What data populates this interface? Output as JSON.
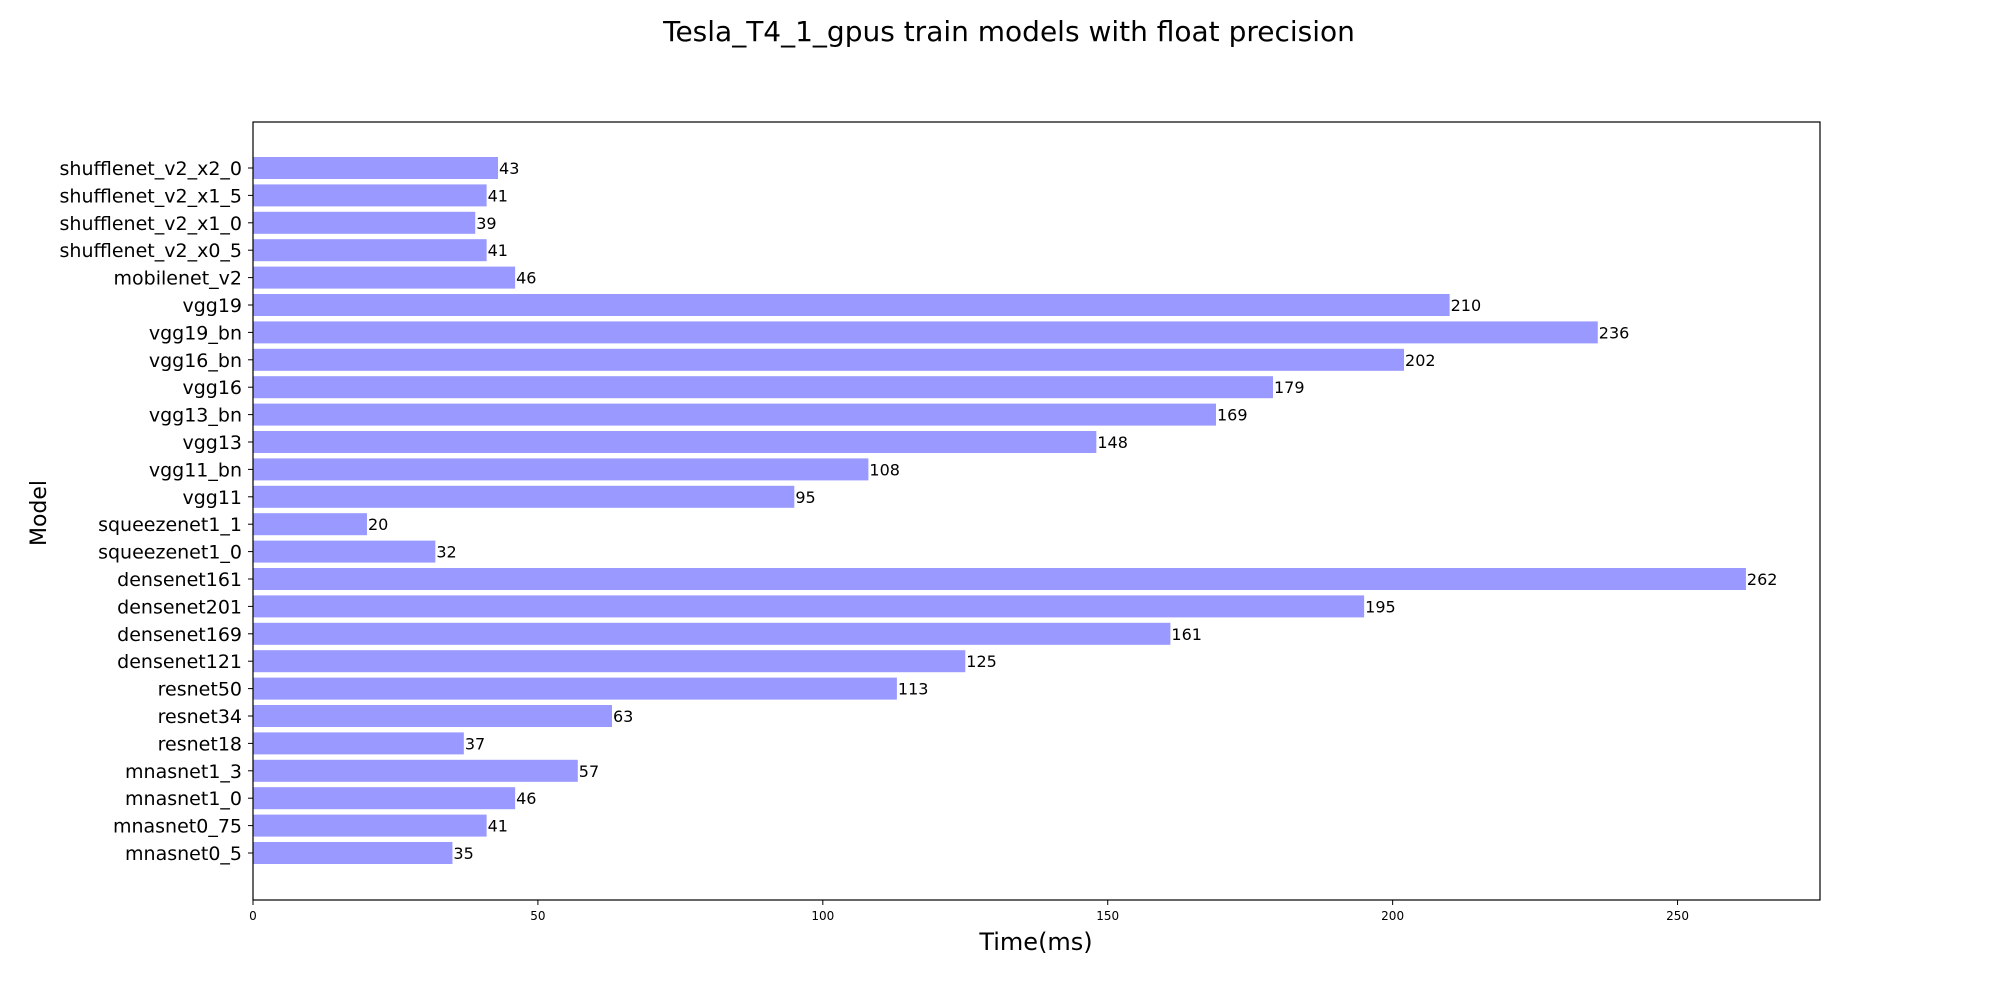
{
  "chart_data": {
    "type": "bar",
    "orientation": "horizontal",
    "title": "Tesla_T4_1_gpus train models with float precision",
    "xlabel": "Time(ms)",
    "ylabel": "Model",
    "xlim": [
      0,
      275
    ],
    "xticks": [
      0,
      50,
      100,
      150,
      200,
      250
    ],
    "grid": false,
    "legend": "none",
    "bar_color": "#9999ff",
    "categories": [
      "mnasnet0_5",
      "mnasnet0_75",
      "mnasnet1_0",
      "mnasnet1_3",
      "resnet18",
      "resnet34",
      "resnet50",
      "densenet121",
      "densenet169",
      "densenet201",
      "densenet161",
      "squeezenet1_0",
      "squeezenet1_1",
      "vgg11",
      "vgg11_bn",
      "vgg13",
      "vgg13_bn",
      "vgg16",
      "vgg16_bn",
      "vgg19_bn",
      "vgg19",
      "mobilenet_v2",
      "shufflenet_v2_x0_5",
      "shufflenet_v2_x1_0",
      "shufflenet_v2_x1_5",
      "shufflenet_v2_x2_0"
    ],
    "values": [
      35,
      41,
      46,
      57,
      37,
      63,
      113,
      125,
      161,
      195,
      262,
      32,
      20,
      95,
      108,
      148,
      169,
      179,
      202,
      236,
      210,
      46,
      41,
      39,
      41,
      43
    ]
  }
}
